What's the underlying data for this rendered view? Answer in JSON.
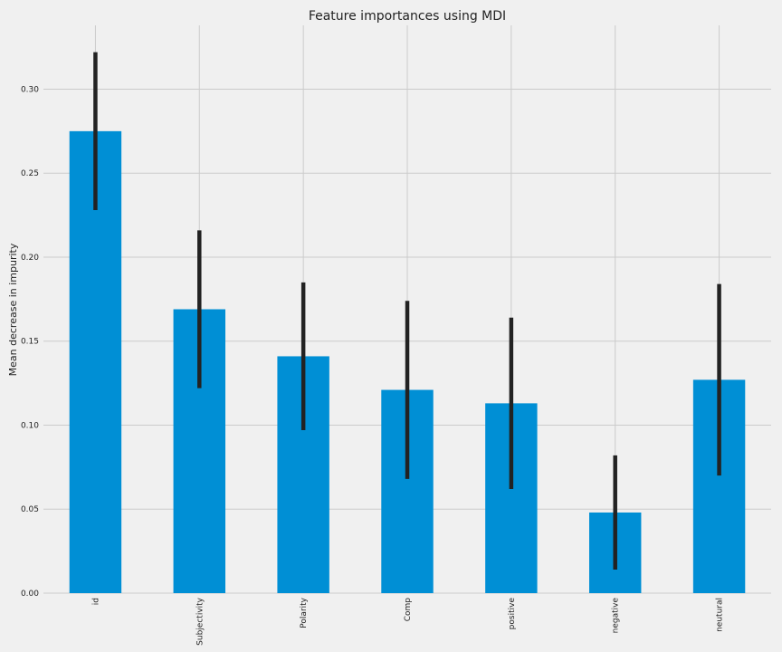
{
  "chart_data": {
    "type": "bar",
    "title": "Feature importances using MDI",
    "xlabel": "",
    "ylabel": "Mean decrease in impurity",
    "categories": [
      "id",
      "Subjectivity",
      "Polarity",
      "Comp",
      "positive",
      "negative",
      "neutural"
    ],
    "values": [
      0.275,
      0.169,
      0.141,
      0.121,
      0.113,
      0.048,
      0.127
    ],
    "errors": [
      0.047,
      0.047,
      0.044,
      0.053,
      0.051,
      0.034,
      0.057
    ],
    "ylim": [
      0,
      0.338
    ],
    "yticks": [
      "0.00",
      "0.05",
      "0.10",
      "0.15",
      "0.20",
      "0.25",
      "0.30"
    ],
    "grid": true,
    "bar_color": "#008fd5",
    "error_color": "#222222",
    "background": "#f0f0f0",
    "grid_color": "#cbcbcb"
  }
}
